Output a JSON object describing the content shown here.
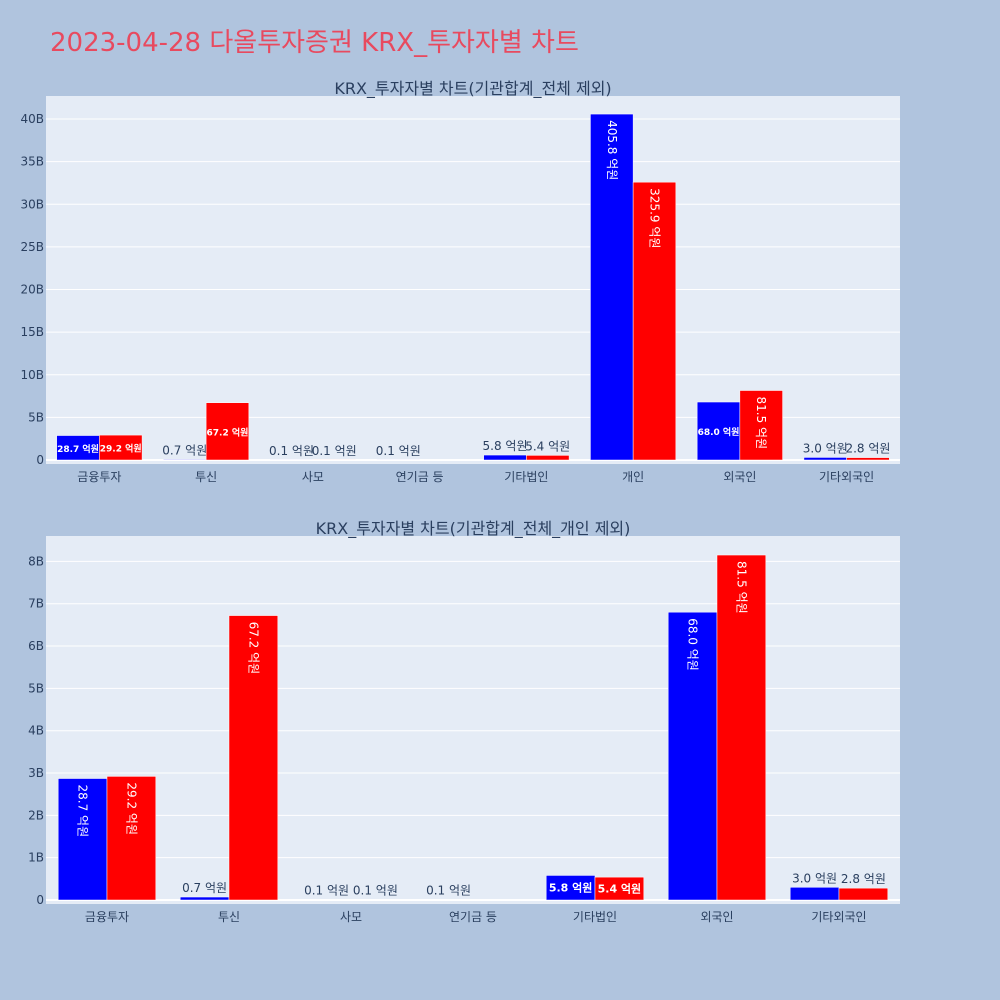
{
  "page": {
    "title": "2023-04-28 다올투자증권 KRX_투자자별 차트"
  },
  "colors": {
    "background": "#b0c4de",
    "plot_background": "#e5ecf6",
    "title": "#e84a5f",
    "series_a": "#0000ff",
    "series_b": "#ff0000",
    "text": "#2a3f5f"
  },
  "chart_data": [
    {
      "type": "bar",
      "title": "KRX_투자자별 차트(기관합계_전체 제외)",
      "categories": [
        "금융투자",
        "투신",
        "사모",
        "연기금 등",
        "기타법인",
        "개인",
        "외국인",
        "기타외국인"
      ],
      "series": [
        {
          "color": "#0000ff",
          "values": [
            2.87,
            0.07,
            0.01,
            0.01,
            0.58,
            40.58,
            6.8,
            0.3
          ],
          "labels": [
            "28.7 억원",
            "0.7 억원",
            "0.1 억원",
            "0.1 억원",
            "5.8 억원",
            "405.8 억원",
            "68.0 억원",
            "3.0 억원"
          ]
        },
        {
          "color": "#ff0000",
          "values": [
            2.92,
            6.72,
            0.01,
            0,
            0.54,
            32.59,
            8.15,
            0.28
          ],
          "labels": [
            "29.2 억원",
            "67.2 억원",
            "0.1 억원",
            "",
            "5.4 억원",
            "325.9 억원",
            "81.5 억원",
            "2.8 억원"
          ]
        }
      ],
      "yticks": [
        "0",
        "5B",
        "10B",
        "15B",
        "20B",
        "25B",
        "30B",
        "35B",
        "40B"
      ],
      "ylim": [
        0,
        42.7
      ],
      "grid": true
    },
    {
      "type": "bar",
      "title": "KRX_투자자별 차트(기관합계_전체_개인 제외)",
      "categories": [
        "금융투자",
        "투신",
        "사모",
        "연기금 등",
        "기타법인",
        "외국인",
        "기타외국인"
      ],
      "series": [
        {
          "color": "#0000ff",
          "values": [
            2.87,
            0.07,
            0.01,
            0.01,
            0.58,
            6.8,
            0.3
          ],
          "labels": [
            "28.7 억원",
            "0.7 억원",
            "0.1 억원",
            "0.1 억원",
            "5.8 억원",
            "68.0 억원",
            "3.0 억원"
          ]
        },
        {
          "color": "#ff0000",
          "values": [
            2.92,
            6.72,
            0.01,
            0,
            0.54,
            8.15,
            0.28
          ],
          "labels": [
            "29.2 억원",
            "67.2 억원",
            "0.1 억원",
            "",
            "5.4 억원",
            "81.5 억원",
            "2.8 억원"
          ]
        }
      ],
      "yticks": [
        "0",
        "1B",
        "2B",
        "3B",
        "4B",
        "5B",
        "6B",
        "7B",
        "8B"
      ],
      "ylim": [
        0,
        8.6
      ],
      "grid": true
    }
  ]
}
